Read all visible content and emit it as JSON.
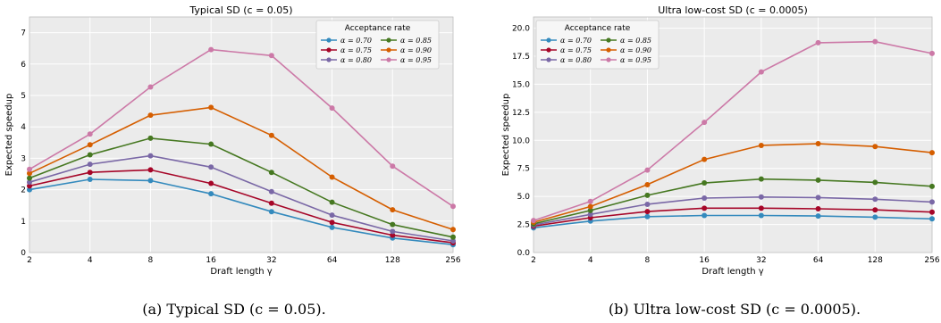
{
  "chart_data": [
    {
      "type": "line",
      "title": "Typical SD (c = 0.05)",
      "xlabel": "Draft length γ",
      "ylabel": "Expected speedup",
      "x": [
        2,
        4,
        8,
        16,
        32,
        64,
        128,
        256
      ],
      "x_scale": "log2",
      "xlim": [
        2,
        256
      ],
      "ylim": [
        0,
        7.5
      ],
      "yticks": [
        0,
        1,
        2,
        3,
        4,
        5,
        6,
        7
      ],
      "grid": true,
      "legend_title": "Acceptance rate",
      "legend_placement": "top-right",
      "caption": "(a) Typical SD (c = 0.05).",
      "series": [
        {
          "name": "α = 0.70",
          "values": [
            2.0,
            2.33,
            2.29,
            1.87,
            1.3,
            0.8,
            0.46,
            0.25
          ]
        },
        {
          "name": "α = 0.75",
          "values": [
            2.12,
            2.55,
            2.63,
            2.2,
            1.57,
            0.96,
            0.55,
            0.31
          ]
        },
        {
          "name": "α = 0.80",
          "values": [
            2.24,
            2.81,
            3.08,
            2.72,
            1.94,
            1.19,
            0.67,
            0.37
          ]
        },
        {
          "name": "α = 0.85",
          "values": [
            2.37,
            3.11,
            3.64,
            3.45,
            2.55,
            1.6,
            0.89,
            0.49
          ]
        },
        {
          "name": "α = 0.90",
          "values": [
            2.52,
            3.43,
            4.37,
            4.62,
            3.73,
            2.4,
            1.36,
            0.73
          ]
        },
        {
          "name": "α = 0.95",
          "values": [
            2.65,
            3.77,
            5.27,
            6.46,
            6.27,
            4.6,
            2.75,
            1.47
          ]
        }
      ]
    },
    {
      "type": "line",
      "title": "Ultra low-cost SD (c = 0.0005)",
      "xlabel": "Draft length γ",
      "ylabel": "Expected speedup",
      "x": [
        2,
        4,
        8,
        16,
        32,
        64,
        128,
        256
      ],
      "x_scale": "log2",
      "xlim": [
        2,
        256
      ],
      "ylim": [
        0,
        21.0
      ],
      "yticks": [
        0.0,
        2.5,
        5.0,
        7.5,
        10.0,
        12.5,
        15.0,
        17.5,
        20.0
      ],
      "grid": true,
      "legend_title": "Acceptance rate",
      "legend_placement": "top-left",
      "caption": "(b) Ultra low-cost SD (c = 0.0005).",
      "series": [
        {
          "name": "α = 0.70",
          "values": [
            2.2,
            2.8,
            3.2,
            3.3,
            3.3,
            3.25,
            3.15,
            3.0
          ]
        },
        {
          "name": "α = 0.75",
          "values": [
            2.35,
            3.1,
            3.65,
            3.95,
            3.95,
            3.9,
            3.8,
            3.6
          ]
        },
        {
          "name": "α = 0.80",
          "values": [
            2.45,
            3.4,
            4.3,
            4.85,
            4.95,
            4.9,
            4.75,
            4.5
          ]
        },
        {
          "name": "α = 0.85",
          "values": [
            2.55,
            3.75,
            5.1,
            6.2,
            6.55,
            6.45,
            6.25,
            5.9
          ]
        },
        {
          "name": "α = 0.90",
          "values": [
            2.7,
            4.1,
            6.05,
            8.3,
            9.55,
            9.7,
            9.45,
            8.9
          ]
        },
        {
          "name": "α = 0.95",
          "values": [
            2.85,
            4.55,
            7.35,
            11.6,
            16.1,
            18.7,
            18.8,
            17.75
          ]
        }
      ]
    }
  ],
  "colors": [
    "#348abd",
    "#a60628",
    "#7a68a6",
    "#467821",
    "#d55e00",
    "#cc79a7"
  ]
}
